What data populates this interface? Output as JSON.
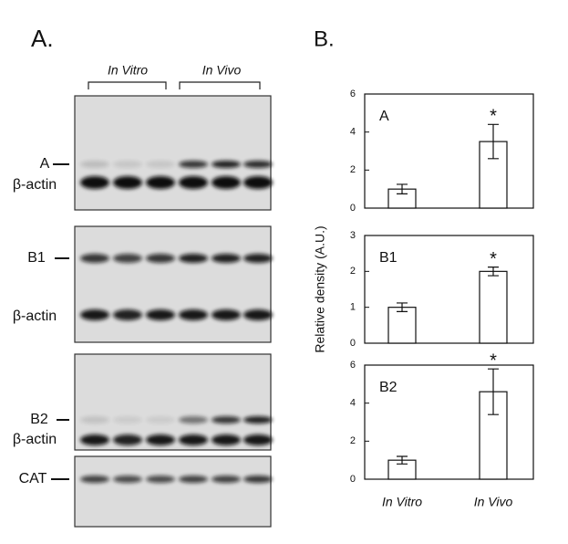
{
  "panel_a": {
    "label": "A.",
    "groups": [
      "In Vitro",
      "In Vivo"
    ],
    "blots": [
      {
        "labels": [
          "A",
          "β-actin"
        ]
      },
      {
        "labels": [
          "B1",
          "β-actin"
        ]
      },
      {
        "labels": [
          "B2",
          "β-actin"
        ]
      },
      {
        "labels": [
          "CAT"
        ]
      }
    ]
  },
  "panel_b": {
    "label": "B."
  },
  "chart_data": [
    {
      "type": "bar",
      "title": "A",
      "values": [
        1.0,
        3.5
      ],
      "errors": [
        0.25,
        0.9
      ],
      "annotation": "*",
      "color": "#ffffff",
      "ylim": [
        0,
        6
      ],
      "yticks": [
        0,
        2,
        4,
        6
      ]
    },
    {
      "type": "bar",
      "title": "B1",
      "values": [
        1.0,
        2.0
      ],
      "errors": [
        0.12,
        0.12
      ],
      "annotation": "*",
      "color": "#ffffff",
      "ylim": [
        0,
        3
      ],
      "yticks": [
        0,
        1,
        2,
        3
      ],
      "ylabel": "Relative density (A.U.)"
    },
    {
      "type": "bar",
      "title": "B2",
      "categories": [
        "In Vitro",
        "In Vivo"
      ],
      "values": [
        1.0,
        4.6
      ],
      "errors": [
        0.2,
        1.2
      ],
      "annotation": "*",
      "color": "#ffffff",
      "ylim": [
        0,
        6
      ],
      "yticks": [
        0,
        2,
        4,
        6
      ]
    }
  ]
}
